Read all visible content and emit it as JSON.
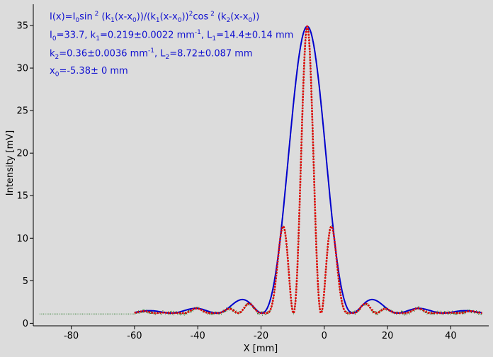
{
  "chart_data": {
    "type": "line",
    "xlabel": "X [mm]",
    "ylabel": "Intensity [mV]",
    "xlim": [
      -92,
      52
    ],
    "ylim": [
      -0.3,
      37.5
    ],
    "xticks": [
      -80,
      -60,
      -40,
      -20,
      0,
      20,
      40
    ],
    "yticks": [
      0,
      5,
      10,
      15,
      20,
      25,
      30,
      35
    ],
    "grid": false,
    "annotations": {
      "line1": {
        "a": "I(x)=I",
        "b": "0",
        "c": "sin",
        "d": " 2",
        "e": " (k",
        "f": "1",
        "g": "(x-x",
        "h": "0",
        "i": "))/(k",
        "j": "1",
        "k": "(x-x",
        "l": "0",
        "m": "))",
        "n": "2",
        "o": "cos",
        "p": " 2",
        "q": " (k",
        "r": "2",
        "s": "(x-x",
        "t": "0",
        "u": "))"
      },
      "line2": {
        "a": "I",
        "b": "0",
        "c": "=33.7,  k",
        "d": "1",
        "e": "=0.219±0.0022 mm",
        "f": "-1",
        "g": ",   L",
        "h": "1",
        "i": "=14.4±0.14 mm"
      },
      "line3": {
        "a": "k",
        "b": "2",
        "c": "=0.36±0.0036 mm",
        "d": "-1",
        "e": ",   L",
        "f": "2",
        "g": "=8.72±0.087 mm"
      },
      "line4": {
        "a": "x",
        "b": "0",
        "c": "=-5.38±   0 mm"
      }
    },
    "fit_params": {
      "I0": 33.7,
      "k1": 0.219,
      "k2": 0.36,
      "x0": -5.38
    },
    "series": [
      {
        "key": "measured_wide",
        "color": "#006400",
        "x_range": [
          -90,
          50
        ],
        "baseline": 1.1
      },
      {
        "key": "envelope_fit",
        "color": "#0000cc",
        "x_range": [
          -60,
          50
        ],
        "baseline": 1.2,
        "peak": 34.9
      },
      {
        "key": "interference_fit",
        "color": "#e00000",
        "x_range": [
          -60,
          50
        ],
        "baseline": 1.2
      }
    ]
  }
}
